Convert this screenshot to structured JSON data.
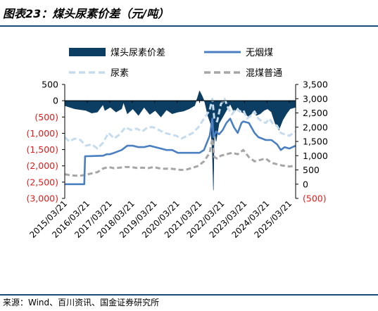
{
  "header": {
    "title": "图表23：煤头尿素价差（元/吨）"
  },
  "footer": {
    "source": "来源：Wind、百川资讯、国金证券研究所"
  },
  "colors": {
    "spread": "#0c3d62",
    "anthracite": "#4a7fc1",
    "urea": "#c5dcef",
    "mixed_coal": "#a6a6a6",
    "negative_tick": "#e01c1c"
  },
  "chart_data": {
    "type": "area",
    "legend": [
      {
        "key": "spread",
        "label": "煤头尿素价差"
      },
      {
        "key": "anthracite",
        "label": "无烟煤"
      },
      {
        "key": "urea",
        "label": "尿素"
      },
      {
        "key": "mixed_coal",
        "label": "混煤普通"
      }
    ],
    "x_tick_labels": [
      "2015/03/21",
      "2016/03/21",
      "2017/03/21",
      "2018/03/21",
      "2019/03/21",
      "2020/03/21",
      "2021/03/21",
      "2022/03/21",
      "2023/03/21",
      "2024/03/21",
      "2025/03/21"
    ],
    "x_range": [
      "2015/03/21",
      "2025/06/30"
    ],
    "left_axis": {
      "ticks": [
        "500",
        "0",
        "(500)",
        "(1,000)",
        "(1,500)",
        "(2,000)",
        "(2,500)",
        "(3,000)"
      ],
      "range": [
        -3000,
        500
      ],
      "series": [
        "spread"
      ]
    },
    "right_axis": {
      "ticks": [
        "3,500",
        "3,000",
        "2,500",
        "2,000",
        "1,500",
        "1,000",
        "500",
        "0",
        "(500)"
      ],
      "range": [
        -500,
        3500
      ],
      "series": [
        "anthracite",
        "urea",
        "mixed_coal"
      ]
    },
    "series": [
      {
        "key": "spread",
        "name": "煤头尿素价差",
        "style": "area",
        "x": [
          "2015/03/21",
          "2015/09/01",
          "2016/03/01",
          "2016/06/01",
          "2016/09/01",
          "2016/12/01",
          "2017/01/01",
          "2017/04/01",
          "2017/07/01",
          "2017/10/01",
          "2017/11/01",
          "2018/01/01",
          "2018/04/01",
          "2018/07/01",
          "2018/10/01",
          "2019/01/01",
          "2019/04/01",
          "2019/07/01",
          "2019/10/01",
          "2020/01/01",
          "2020/04/01",
          "2020/07/01",
          "2020/10/01",
          "2021/01/01",
          "2021/02/15",
          "2021/03/21",
          "2021/05/01",
          "2021/06/15",
          "2021/08/01",
          "2021/09/15",
          "2021/10/15",
          "2021/11/01",
          "2021/11/10",
          "2021/11/20",
          "2021/12/15",
          "2022/02/01",
          "2022/04/01",
          "2022/06/01",
          "2022/08/01",
          "2022/10/01",
          "2022/12/01",
          "2023/02/01",
          "2023/04/01",
          "2023/06/01",
          "2023/08/01",
          "2023/10/01",
          "2023/12/01",
          "2024/02/01",
          "2024/04/01",
          "2024/06/01",
          "2024/08/01",
          "2024/10/01",
          "2024/12/01",
          "2025/02/01",
          "2025/04/01",
          "2025/06/30"
        ],
        "values": [
          -150,
          -250,
          -300,
          -380,
          -350,
          -120,
          -300,
          -200,
          -350,
          -250,
          -50,
          -400,
          -250,
          -450,
          -200,
          -420,
          -300,
          -500,
          -280,
          -400,
          -350,
          -320,
          -250,
          -150,
          100,
          300,
          150,
          -50,
          -450,
          -700,
          -1600,
          -2750,
          -1400,
          -900,
          -1250,
          -700,
          -500,
          -300,
          -100,
          -350,
          -200,
          -350,
          -400,
          -500,
          -350,
          -450,
          -400,
          -300,
          -250,
          -350,
          -700,
          -900,
          -600,
          -400,
          -250,
          -200
        ]
      },
      {
        "key": "anthracite",
        "name": "无烟煤",
        "style": "line",
        "x": [
          "2015/03/21",
          "2016/02/01",
          "2016/02/15",
          "2016/12/01",
          "2017/02/01",
          "2017/03/21",
          "2017/06/01",
          "2017/10/01",
          "2018/01/01",
          "2018/04/01",
          "2018/07/01",
          "2018/10/01",
          "2019/01/01",
          "2019/04/01",
          "2019/07/01",
          "2019/10/01",
          "2020/01/01",
          "2020/04/01",
          "2020/07/01",
          "2020/10/01",
          "2021/01/01",
          "2021/03/21",
          "2021/06/01",
          "2021/09/01",
          "2021/10/15",
          "2021/11/01",
          "2021/12/15",
          "2022/02/01",
          "2022/04/01",
          "2022/06/01",
          "2022/08/01",
          "2022/10/01",
          "2022/12/01",
          "2023/02/01",
          "2023/03/01",
          "2023/06/01",
          "2023/09/01",
          "2023/11/01",
          "2024/01/01",
          "2024/03/01",
          "2024/06/01",
          "2024/09/01",
          "2024/11/01",
          "2025/01/01",
          "2025/03/21",
          "2025/06/30"
        ],
        "values": [
          0,
          0,
          980,
          1000,
          1050,
          1050,
          1100,
          1200,
          1350,
          1350,
          1300,
          1300,
          1350,
          1300,
          1250,
          1200,
          1200,
          1100,
          1100,
          1100,
          1100,
          1100,
          1200,
          1700,
          2300,
          1650,
          1850,
          1750,
          1900,
          2150,
          2300,
          2000,
          1800,
          2150,
          2200,
          2150,
          1800,
          1650,
          1600,
          1550,
          1550,
          1400,
          1200,
          1300,
          1250,
          1350
        ]
      },
      {
        "key": "urea",
        "name": "尿素",
        "style": "dashed",
        "x": [
          "2015/03/21",
          "2015/06/01",
          "2015/09/01",
          "2015/12/01",
          "2016/03/01",
          "2016/06/01",
          "2016/09/01",
          "2016/12/01",
          "2017/03/01",
          "2017/06/01",
          "2017/09/01",
          "2017/12/01",
          "2018/03/01",
          "2018/06/01",
          "2018/09/01",
          "2018/12/01",
          "2019/03/01",
          "2019/06/01",
          "2019/09/01",
          "2019/12/01",
          "2020/03/01",
          "2020/06/01",
          "2020/09/01",
          "2020/12/01",
          "2021/03/01",
          "2021/06/01",
          "2021/09/01",
          "2021/10/15",
          "2021/11/15",
          "2022/01/01",
          "2022/03/01",
          "2022/05/01",
          "2022/07/01",
          "2022/09/01",
          "2022/11/01",
          "2023/01/01",
          "2023/03/01",
          "2023/05/01",
          "2023/07/01",
          "2023/09/01",
          "2023/11/01",
          "2024/01/01",
          "2024/03/01",
          "2024/05/01",
          "2024/07/01",
          "2024/09/01",
          "2024/11/01",
          "2025/01/01",
          "2025/03/21",
          "2025/06/30"
        ],
        "values": [
          1650,
          1500,
          1600,
          1550,
          1350,
          1400,
          1250,
          1450,
          1800,
          1600,
          1750,
          2000,
          1900,
          1950,
          1850,
          2000,
          2000,
          1900,
          1800,
          1750,
          1700,
          1600,
          1700,
          1800,
          2000,
          2300,
          2600,
          3000,
          2300,
          2200,
          2800,
          3000,
          2650,
          2450,
          2650,
          2550,
          2600,
          2300,
          2400,
          2550,
          2300,
          2200,
          2150,
          2300,
          2100,
          2050,
          1800,
          1750,
          1700,
          1850
        ]
      },
      {
        "key": "mixed_coal",
        "name": "混煤普通",
        "style": "dashed",
        "x": [
          "2015/03/21",
          "2015/06/01",
          "2015/09/01",
          "2015/12/01",
          "2016/03/01",
          "2016/06/01",
          "2016/09/01",
          "2016/12/01",
          "2017/03/01",
          "2017/06/01",
          "2017/09/01",
          "2017/12/01",
          "2018/03/01",
          "2018/06/01",
          "2018/09/01",
          "2018/12/01",
          "2019/03/01",
          "2019/06/01",
          "2019/09/01",
          "2019/12/01",
          "2020/03/01",
          "2020/06/01",
          "2020/09/01",
          "2020/12/01",
          "2021/03/01",
          "2021/06/01",
          "2021/09/01",
          "2021/10/15",
          "2021/11/15",
          "2022/01/01",
          "2022/03/01",
          "2022/06/01",
          "2022/09/01",
          "2022/12/01",
          "2023/03/01",
          "2023/06/01",
          "2023/09/01",
          "2023/12/01",
          "2024/03/01",
          "2024/06/01",
          "2024/09/01",
          "2024/12/01",
          "2025/03/21",
          "2025/06/30"
        ],
        "values": [
          350,
          320,
          300,
          300,
          330,
          380,
          420,
          550,
          600,
          560,
          580,
          600,
          600,
          570,
          580,
          560,
          600,
          560,
          540,
          550,
          520,
          500,
          520,
          580,
          640,
          800,
          1100,
          1600,
          950,
          900,
          1000,
          1050,
          1100,
          1050,
          1200,
          950,
          800,
          850,
          900,
          750,
          700,
          650,
          620,
          650
        ]
      }
    ]
  }
}
